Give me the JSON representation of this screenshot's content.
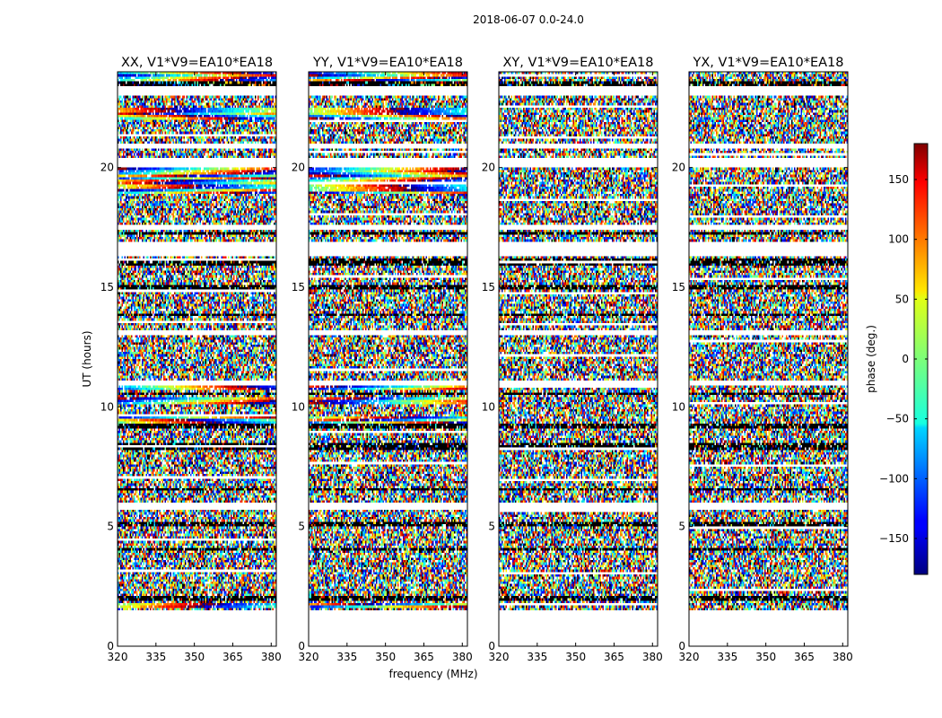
{
  "chart_data": {
    "type": "heatmap",
    "suptitle": "2018-06-07 0.0-24.0",
    "xlabel": "frequency (MHz)",
    "ylabel": "UT (hours)",
    "xlim": [
      320,
      382
    ],
    "ylim": [
      0,
      24
    ],
    "xticks": [
      320,
      335,
      350,
      365,
      380
    ],
    "yticks": [
      0,
      5,
      10,
      15,
      20
    ],
    "panels": [
      {
        "title": "XX, V1*V9=EA10*EA18",
        "polarization": "XX",
        "coherent_bands": [
          [
            1.6,
            1.75
          ],
          [
            9.3,
            9.6
          ],
          [
            10.1,
            10.4
          ],
          [
            10.7,
            10.9
          ],
          [
            18.9,
            20.0
          ],
          [
            22.0,
            22.5
          ],
          [
            23.3,
            24.0
          ]
        ]
      },
      {
        "title": "YY, V1*V9=EA10*EA18",
        "polarization": "YY",
        "coherent_bands": [
          [
            1.6,
            1.75
          ],
          [
            9.3,
            9.6
          ],
          [
            10.1,
            10.4
          ],
          [
            10.7,
            10.9
          ],
          [
            18.9,
            20.0
          ],
          [
            22.0,
            22.5
          ],
          [
            23.3,
            24.0
          ]
        ]
      },
      {
        "title": "XY, V1*V9=EA10*EA18",
        "polarization": "XY",
        "coherent_bands": []
      },
      {
        "title": "YX, V1*V9=EA10*EA18",
        "polarization": "YX",
        "coherent_bands": []
      }
    ],
    "data_coverage_hours": [
      1.55,
      24.0
    ],
    "blank_rows_hours": [
      [
        5.75,
        6.05
      ],
      [
        10.9,
        11.05
      ],
      [
        13.0,
        13.15
      ],
      [
        16.3,
        16.9
      ],
      [
        17.45,
        17.6
      ],
      [
        20.0,
        20.4
      ],
      [
        20.85,
        21.0
      ],
      [
        23.05,
        23.35
      ]
    ],
    "dark_rows_hours": [
      2.0,
      4.05,
      5.1,
      6.55,
      8.3,
      8.45,
      9.2,
      10.55,
      13.85,
      15.0,
      16.0,
      16.1,
      17.25,
      23.4,
      23.55
    ],
    "colorbar": {
      "label": "phase (deg.)",
      "range": [
        -180,
        180
      ],
      "ticks": [
        -150,
        -100,
        -50,
        0,
        50,
        100,
        150
      ],
      "colormap": "jet"
    }
  }
}
